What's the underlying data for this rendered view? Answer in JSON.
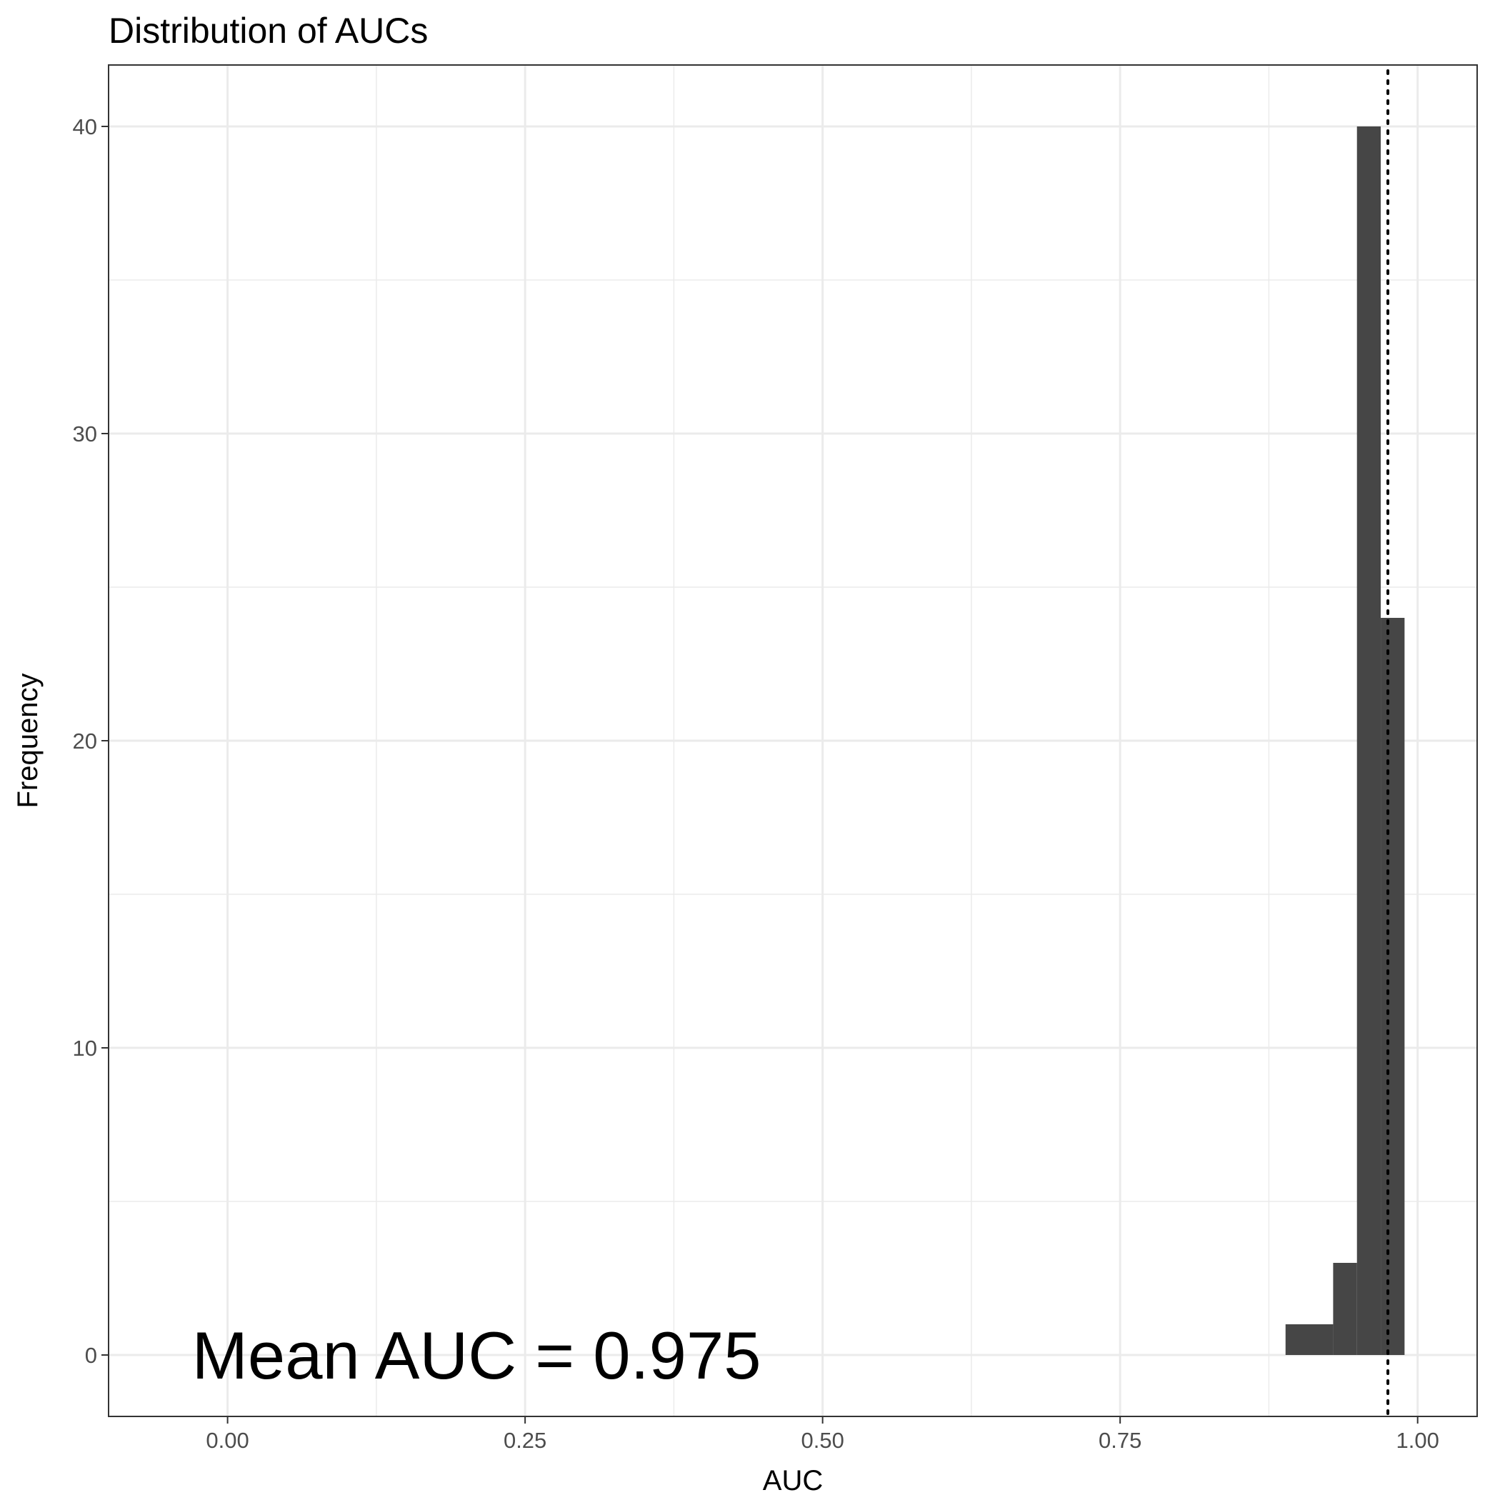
{
  "chart_data": {
    "type": "bar",
    "title": "Distribution of AUCs",
    "xlabel": "AUC",
    "ylabel": "Frequency",
    "xlim": [
      -0.1,
      1.05
    ],
    "ylim": [
      -2,
      42
    ],
    "x_ticks": [
      0,
      0.25,
      0.5,
      0.75,
      1
    ],
    "x_tick_labels": [
      "0.00",
      "0.25",
      "0.50",
      "0.75",
      "1.00"
    ],
    "y_ticks": [
      0,
      10,
      20,
      30,
      40
    ],
    "y_tick_labels": [
      "0",
      "10",
      "20",
      "30",
      "40"
    ],
    "grid": true,
    "bins": [
      {
        "x0": 0.889,
        "x1": 0.929,
        "count": 1
      },
      {
        "x0": 0.929,
        "x1": 0.949,
        "count": 3
      },
      {
        "x0": 0.949,
        "x1": 0.969,
        "count": 40
      },
      {
        "x0": 0.969,
        "x1": 0.989,
        "count": 24
      }
    ],
    "bar_color": "#464646",
    "mean_line": {
      "x": 0.975,
      "style": "dotted"
    },
    "annotation": {
      "text": "Mean AUC = 0.975",
      "x": -0.03,
      "y": 0
    }
  }
}
